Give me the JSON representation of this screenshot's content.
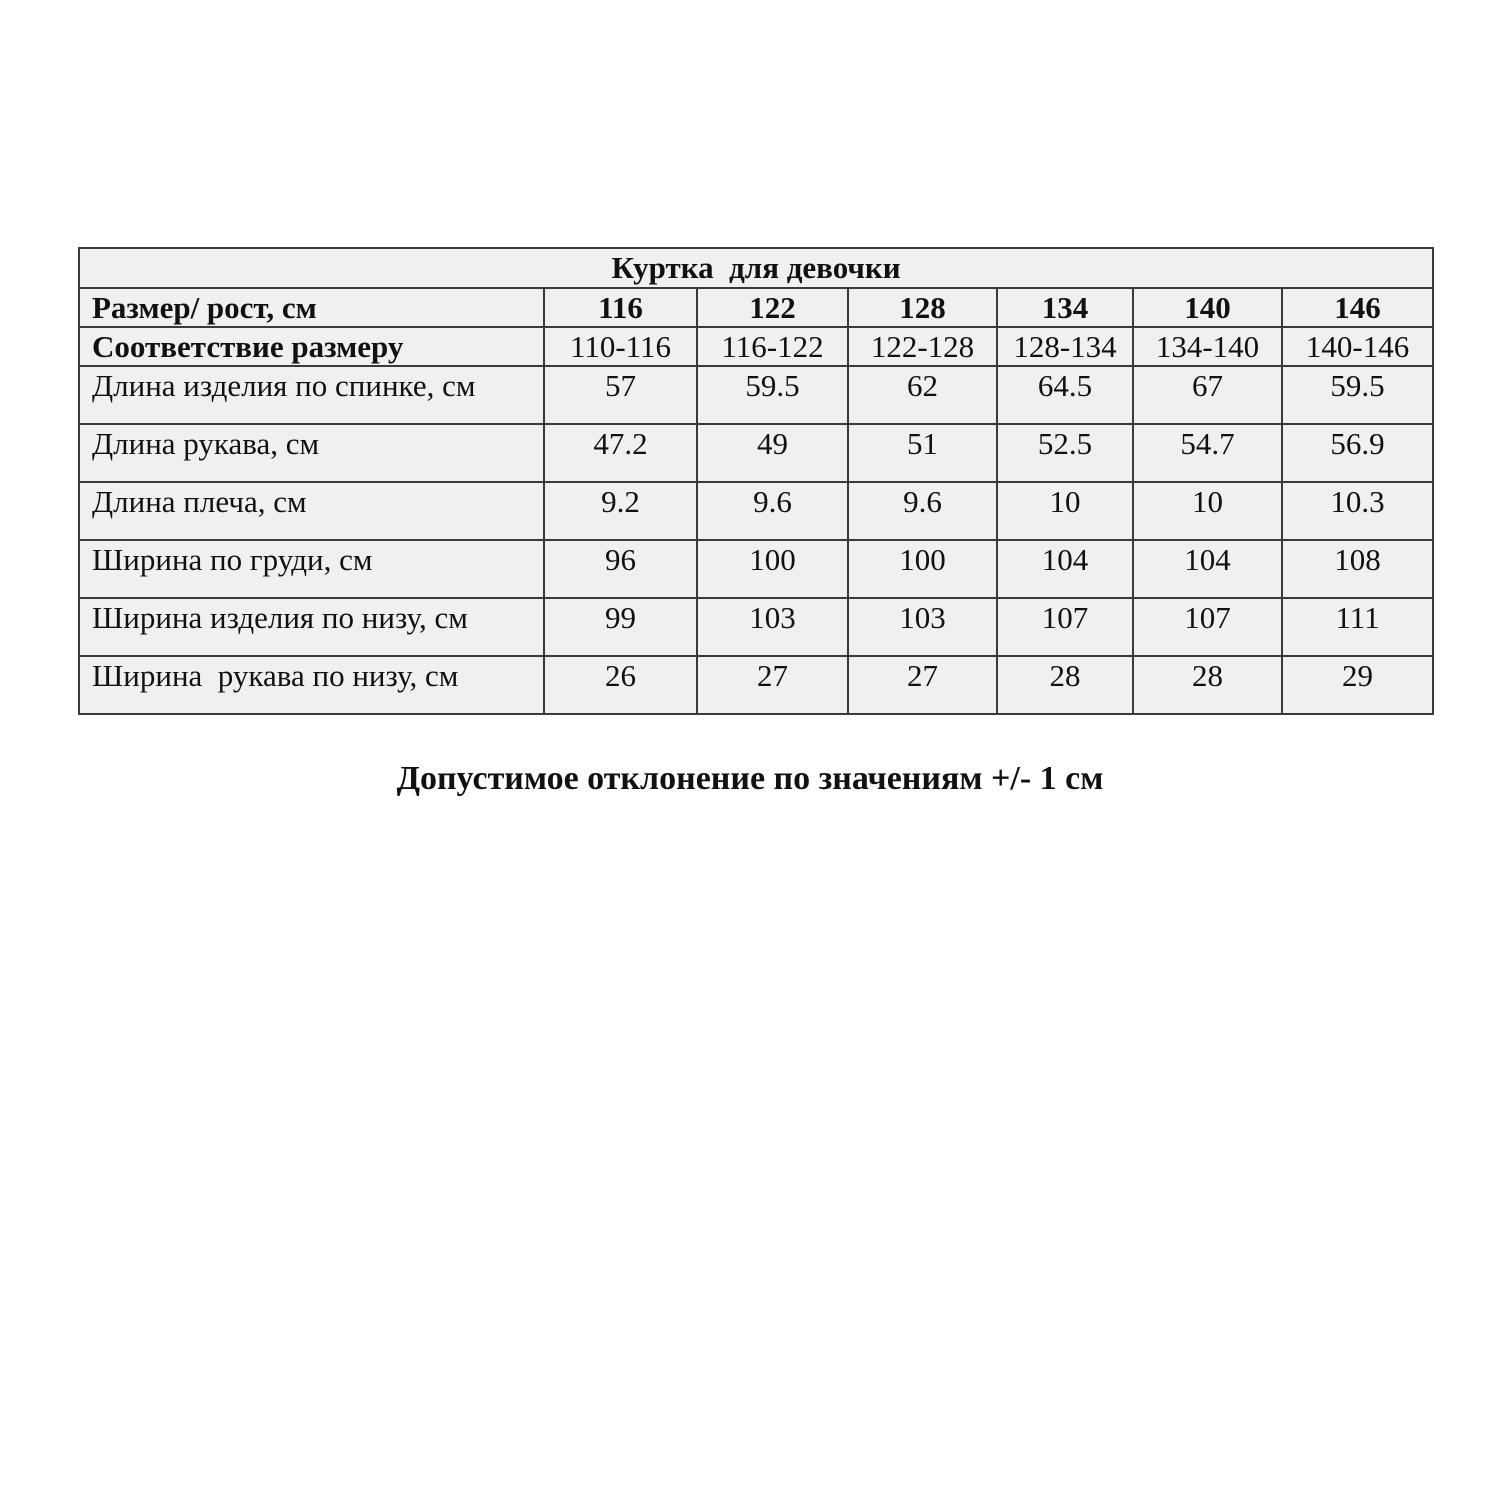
{
  "table": {
    "title": "Куртка  для девочки",
    "header": {
      "label": "Размер/ рост, см",
      "sizes": [
        "116",
        "122",
        "128",
        "134",
        "140",
        "146"
      ]
    },
    "correspondence": {
      "label": "Соответствие размеру",
      "values": [
        "110-116",
        "116-122",
        "122-128",
        "128-134",
        "134-140",
        "140-146"
      ]
    },
    "rows": [
      {
        "label": "Длина изделия по спинке, см",
        "values": [
          "57",
          "59.5",
          "62",
          "64.5",
          "67",
          "59.5"
        ]
      },
      {
        "label": "Длина рукава, см",
        "values": [
          "47.2",
          "49",
          "51",
          "52.5",
          "54.7",
          "56.9"
        ]
      },
      {
        "label": "Длина плеча, см",
        "values": [
          "9.2",
          "9.6",
          "9.6",
          "10",
          "10",
          "10.3"
        ]
      },
      {
        "label": "Ширина по груди, см",
        "values": [
          "96",
          "100",
          "100",
          "104",
          "104",
          "108"
        ]
      },
      {
        "label": "Ширина изделия по низу, см",
        "values": [
          "99",
          "103",
          "103",
          "107",
          "107",
          "111"
        ]
      },
      {
        "label": "Ширина  рукава по низу, см",
        "values": [
          "26",
          "27",
          "27",
          "28",
          "28",
          "29"
        ]
      }
    ]
  },
  "note": "Допустимое отклонение по значениям +/- 1 см"
}
